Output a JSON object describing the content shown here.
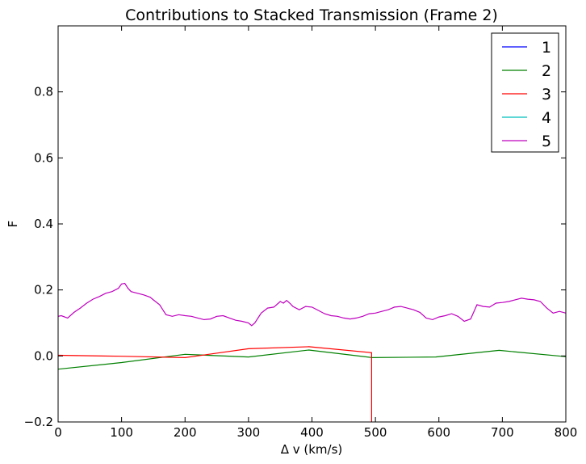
{
  "chart_data": {
    "type": "line",
    "title": "Contributions to Stacked Transmission (Frame 2)",
    "xlabel": "Δ v (km/s)",
    "ylabel": "F",
    "xlim": [
      0,
      800
    ],
    "ylim": [
      -0.2,
      1.0
    ],
    "xticks": [
      "0",
      "100",
      "200",
      "300",
      "400",
      "500",
      "600",
      "700",
      "800"
    ],
    "yticks": [
      "−0.2",
      "0.0",
      "0.2",
      "0.4",
      "0.6",
      "0.8"
    ],
    "legend_position": "top-right",
    "grid": false,
    "series": [
      {
        "name": "1",
        "color": "#0000ff",
        "x": [],
        "y": []
      },
      {
        "name": "2",
        "color": "#008000",
        "x": [
          0,
          100,
          200,
          300,
          395,
          495,
          595,
          695,
          800
        ],
        "y": [
          -0.04,
          -0.02,
          0.005,
          -0.003,
          0.018,
          -0.005,
          -0.003,
          0.017,
          -0.002
        ]
      },
      {
        "name": "3",
        "color": "#ff0000",
        "x": [
          0,
          100,
          200,
          300,
          395,
          494,
          494
        ],
        "y": [
          0.002,
          -0.001,
          -0.005,
          0.022,
          0.028,
          0.01,
          -0.2
        ]
      },
      {
        "name": "4",
        "color": "#00bfbf",
        "x": [],
        "y": []
      },
      {
        "name": "5",
        "color": "#bf00bf",
        "x": [
          0,
          5,
          15,
          25,
          35,
          45,
          55,
          65,
          75,
          85,
          95,
          100,
          105,
          110,
          115,
          125,
          135,
          145,
          150,
          160,
          165,
          170,
          180,
          190,
          200,
          210,
          220,
          230,
          240,
          250,
          260,
          270,
          280,
          290,
          300,
          305,
          310,
          320,
          330,
          340,
          350,
          355,
          360,
          365,
          370,
          380,
          390,
          400,
          410,
          420,
          430,
          440,
          450,
          460,
          470,
          480,
          490,
          500,
          510,
          520,
          530,
          540,
          550,
          560,
          570,
          580,
          590,
          600,
          610,
          620,
          630,
          640,
          650,
          660,
          670,
          680,
          690,
          700,
          710,
          720,
          730,
          740,
          750,
          760,
          770,
          780,
          790,
          800
        ],
        "y": [
          0.12,
          0.122,
          0.115,
          0.132,
          0.145,
          0.16,
          0.172,
          0.18,
          0.19,
          0.195,
          0.205,
          0.218,
          0.22,
          0.205,
          0.195,
          0.19,
          0.185,
          0.178,
          0.17,
          0.155,
          0.14,
          0.125,
          0.12,
          0.125,
          0.122,
          0.12,
          0.115,
          0.11,
          0.112,
          0.12,
          0.122,
          0.115,
          0.108,
          0.105,
          0.1,
          0.092,
          0.1,
          0.13,
          0.145,
          0.148,
          0.165,
          0.16,
          0.168,
          0.16,
          0.15,
          0.14,
          0.15,
          0.148,
          0.138,
          0.128,
          0.122,
          0.12,
          0.115,
          0.112,
          0.115,
          0.12,
          0.128,
          0.13,
          0.135,
          0.14,
          0.148,
          0.15,
          0.145,
          0.14,
          0.132,
          0.115,
          0.11,
          0.118,
          0.122,
          0.128,
          0.12,
          0.105,
          0.112,
          0.155,
          0.15,
          0.148,
          0.16,
          0.162,
          0.165,
          0.17,
          0.175,
          0.172,
          0.17,
          0.165,
          0.145,
          0.13,
          0.135,
          0.13
        ]
      }
    ]
  }
}
